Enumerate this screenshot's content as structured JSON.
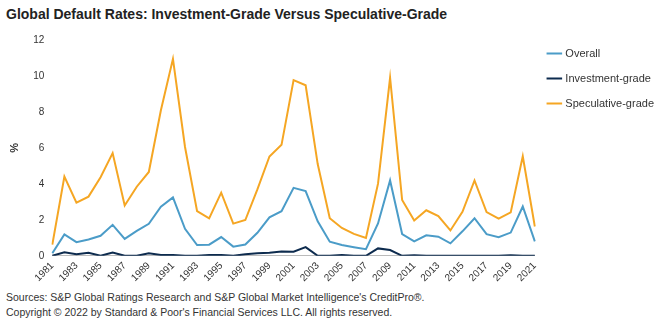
{
  "chart_data": {
    "type": "line",
    "title": "Global Default Rates: Investment-Grade Versus Speculative-Grade",
    "y_label": "%",
    "categories": [
      "1981",
      null,
      "1983",
      null,
      "1985",
      null,
      "1987",
      null,
      "1989",
      null,
      "1991",
      null,
      "1993",
      null,
      "1995",
      null,
      "1997",
      null,
      "1999",
      null,
      "2001",
      null,
      "2003",
      null,
      "2005",
      null,
      "2007",
      null,
      "2009",
      null,
      "2011",
      null,
      "2013",
      null,
      "2015",
      null,
      "2017",
      null,
      "2019",
      null,
      "2021"
    ],
    "series": [
      {
        "name": "Overall",
        "color": "#4b9cc8",
        "values": [
          0.14,
          1.19,
          0.76,
          0.91,
          1.11,
          1.72,
          0.94,
          1.38,
          1.78,
          2.73,
          3.25,
          1.5,
          0.6,
          0.62,
          1.04,
          0.51,
          0.63,
          1.28,
          2.14,
          2.48,
          3.78,
          3.6,
          1.92,
          0.78,
          0.6,
          0.48,
          0.37,
          1.8,
          4.19,
          1.21,
          0.8,
          1.14,
          1.06,
          0.69,
          1.36,
          2.09,
          1.2,
          1.03,
          1.29,
          2.74,
          0.8
        ]
      },
      {
        "name": "Investment-grade",
        "color": "#0d2b4e",
        "values": [
          0,
          0.19,
          0.09,
          0.17,
          0,
          0.18,
          0,
          0,
          0.14,
          0.05,
          0.05,
          0,
          0,
          0.05,
          0.05,
          0,
          0.08,
          0.14,
          0.17,
          0.24,
          0.23,
          0.48,
          0,
          0,
          0.05,
          0,
          0,
          0.41,
          0.32,
          0,
          0.03,
          0,
          0,
          0,
          0,
          0,
          0,
          0,
          0.03,
          0,
          0
        ]
      },
      {
        "name": "Speculative-grade",
        "color": "#f5a623",
        "values": [
          0.62,
          4.41,
          2.96,
          3.29,
          4.37,
          5.71,
          2.8,
          3.84,
          4.66,
          8.09,
          10.95,
          6.05,
          2.48,
          2.08,
          3.51,
          1.79,
          1.99,
          3.69,
          5.52,
          6.17,
          9.77,
          9.48,
          5.1,
          2.09,
          1.55,
          1.22,
          0.99,
          4.01,
          9.9,
          3.1,
          1.96,
          2.53,
          2.21,
          1.41,
          2.44,
          4.19,
          2.43,
          2.07,
          2.41,
          5.53,
          1.63
        ]
      }
    ],
    "ylim": [
      0,
      12
    ],
    "yticks": [
      0,
      2,
      4,
      6,
      8,
      10,
      12
    ],
    "grid": false,
    "legend": "right",
    "annotations": [
      "Sources: S&P Global Ratings Research and S&P Global Market Intelligence's CreditPro®.",
      "Copyright © 2022 by Standard & Poor's Financial Services LLC. All rights reserved."
    ]
  }
}
